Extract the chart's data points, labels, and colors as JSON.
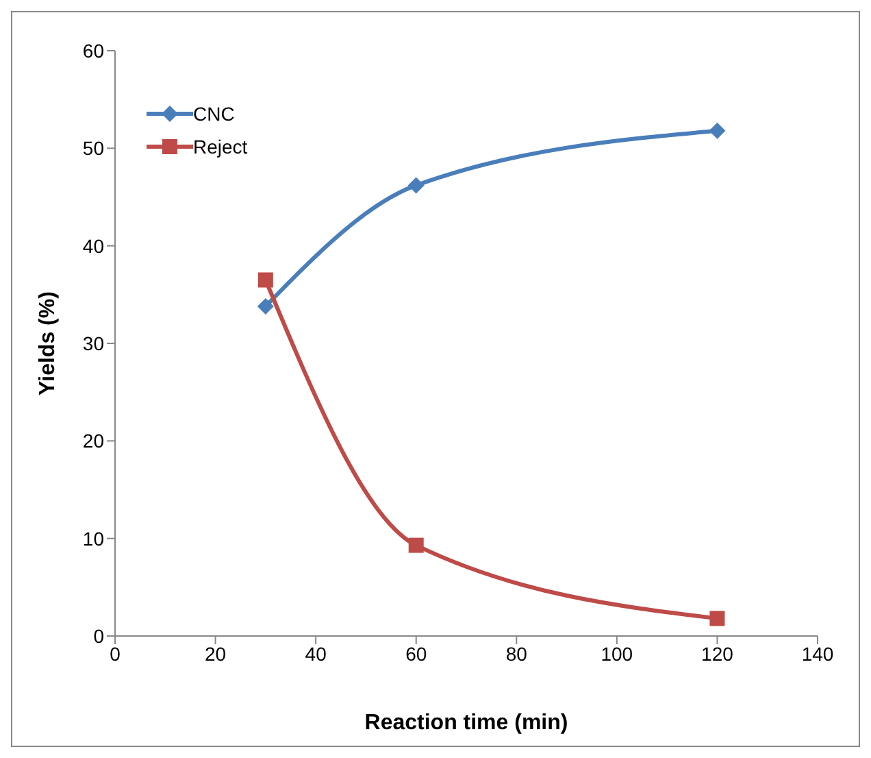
{
  "chart_data": {
    "type": "line",
    "xlabel": "Reaction time (min)",
    "ylabel": "Yields (%)",
    "x": [
      30,
      60,
      120
    ],
    "series": [
      {
        "name": "CNC",
        "color": "#4a7ebb",
        "values": [
          33.8,
          46.2,
          51.8
        ],
        "marker": "diamond"
      },
      {
        "name": "Reject",
        "color": "#be4b48",
        "values": [
          36.5,
          9.3,
          1.8
        ],
        "marker": "square"
      }
    ],
    "xlim": [
      0,
      140
    ],
    "xticks": [
      0,
      20,
      40,
      60,
      80,
      100,
      120,
      140
    ],
    "ylim": [
      0,
      60
    ],
    "yticks": [
      0,
      10,
      20,
      30,
      40,
      50,
      60
    ],
    "grid": false,
    "legend": "top left",
    "line_style": "solid"
  }
}
